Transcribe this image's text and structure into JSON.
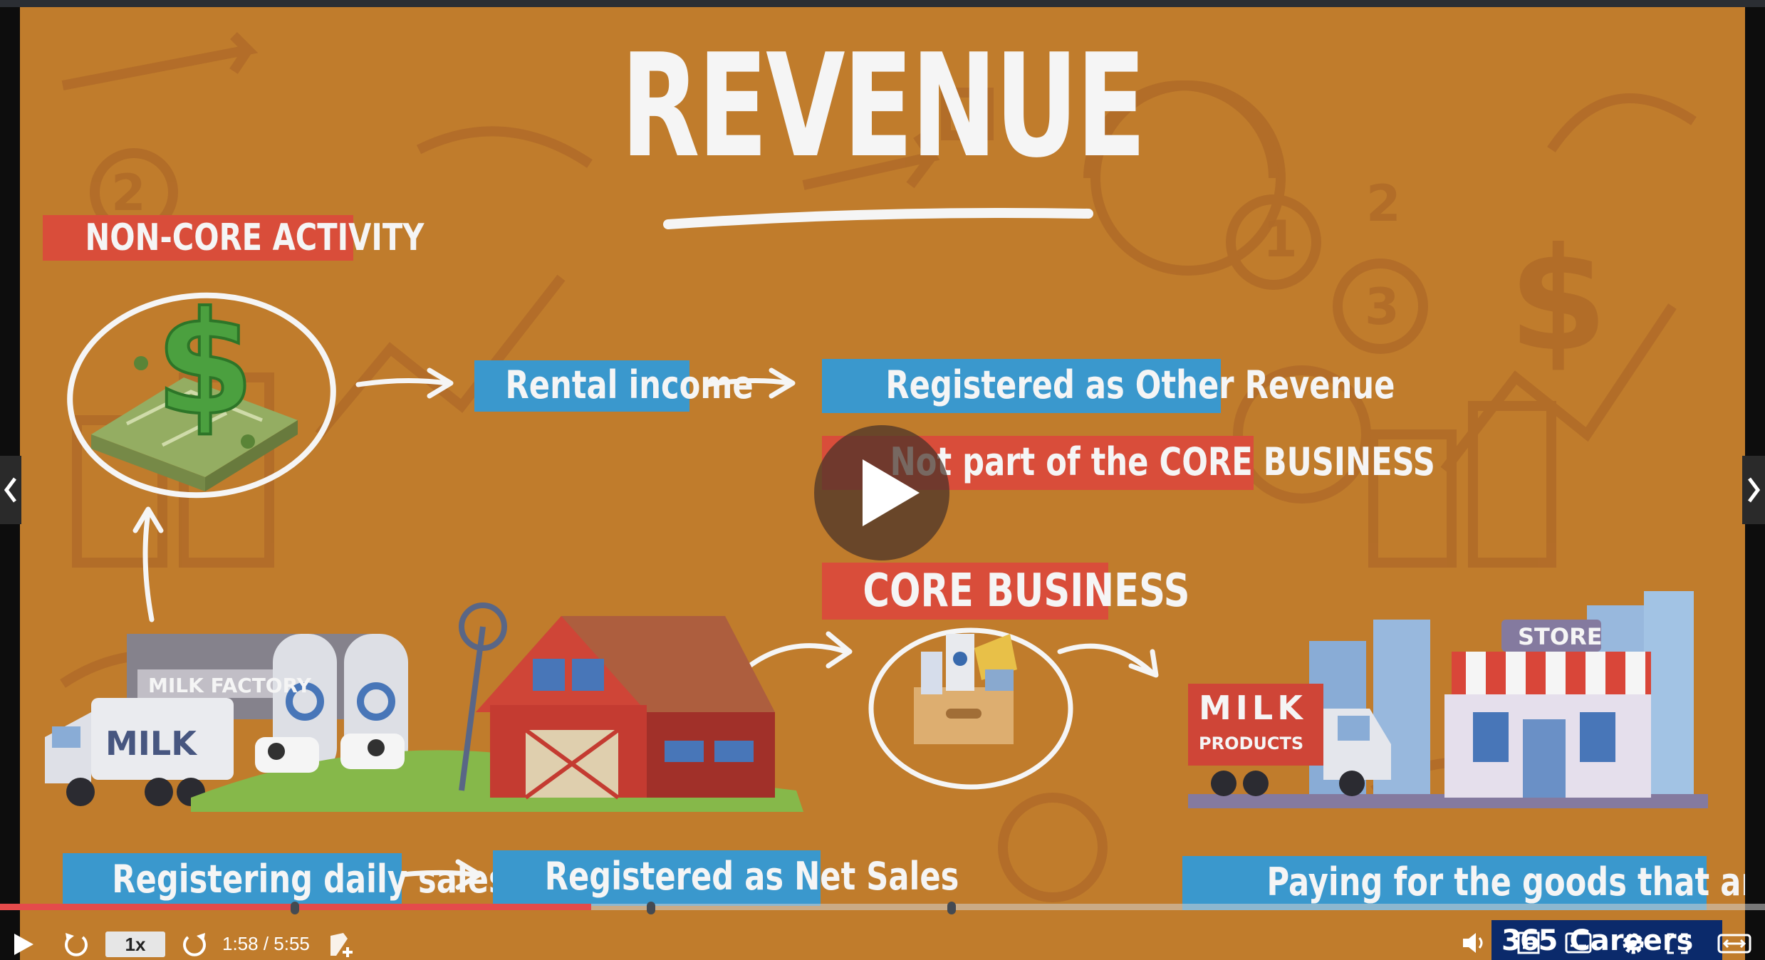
{
  "slide": {
    "title": "REVENUE",
    "non_core_label": "NON-CORE ACTIVITY",
    "rental_income": "Rental income",
    "other_revenue": "Registered as Other Revenue",
    "not_part": "Not part of the CORE BUSINESS",
    "core_business": "CORE BUSINESS",
    "daily_sales": "Registering daily sales",
    "net_sales": "Registered as Net Sales",
    "paying": "Paying for the goods that are provided",
    "milk_factory_sign": "MILK FACTORY",
    "truck_milk_text": "MILK",
    "milk_products_truck_line1": "MILK",
    "milk_products_truck_line2": "PRODUCTS",
    "store_sign": "STORE",
    "bg_numbers": [
      "2",
      "1",
      "2",
      "3",
      "$"
    ]
  },
  "player": {
    "speed": "1x",
    "time_display": "1:58 / 5:55",
    "progress_fraction": 0.335,
    "brand_number": "365",
    "brand_name": "Careers",
    "colors": {
      "slide_bg": "#c8822e",
      "red_label": "#e2513d",
      "blue_label": "#3d9fd6",
      "progress_played": "#e44b4b",
      "brand_bg": "#0b2a6b"
    },
    "icons": [
      "play-icon",
      "rewind-icon",
      "forward-icon",
      "add-note-icon",
      "volume-icon",
      "transcript-icon",
      "captions-icon",
      "settings-icon",
      "fullscreen-icon",
      "expand-icon",
      "chevron-left-icon",
      "chevron-right-icon",
      "big-play-icon"
    ]
  }
}
